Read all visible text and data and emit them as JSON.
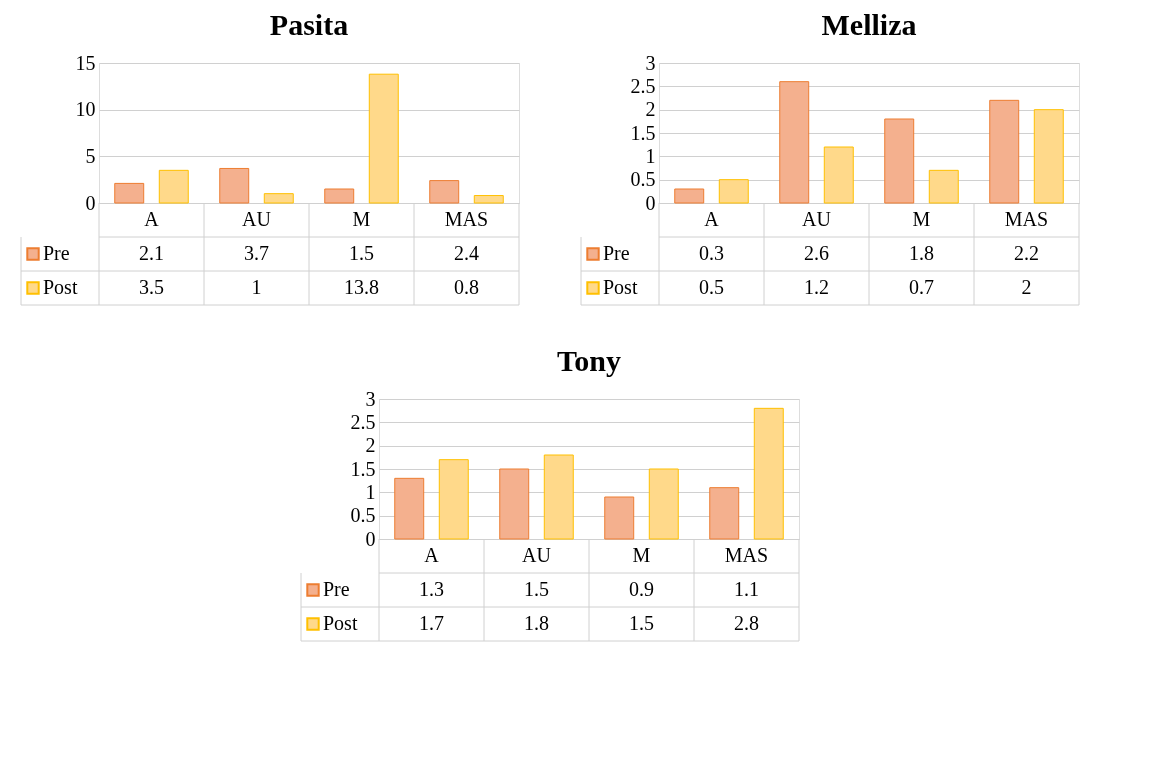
{
  "chart_data": [
    {
      "type": "bar",
      "title": "Pasita",
      "categories": [
        "A",
        "AU",
        "M",
        "MAS"
      ],
      "series": [
        {
          "name": "Pre",
          "color": "#f4b08e",
          "values": [
            2.1,
            3.7,
            1.5,
            2.4
          ]
        },
        {
          "name": "Post",
          "color": "#ffd98a",
          "values": [
            3.5,
            1,
            13.8,
            0.8
          ]
        }
      ],
      "ylim": [
        0,
        15
      ],
      "yticks": [
        0,
        5,
        10,
        15
      ],
      "grid": "y",
      "data_labels": true,
      "legend": "bottom left"
    },
    {
      "type": "bar",
      "title": "Melliza",
      "categories": [
        "A",
        "AU",
        "M",
        "MAS"
      ],
      "series": [
        {
          "name": "Pre",
          "color": "#f4b08e",
          "values": [
            0.3,
            2.6,
            1.8,
            2.2
          ]
        },
        {
          "name": "Post",
          "color": "#ffd98a",
          "values": [
            0.5,
            1.2,
            0.7,
            2
          ]
        }
      ],
      "ylim": [
        0,
        3
      ],
      "yticks": [
        0,
        0.5,
        1,
        1.5,
        2,
        2.5,
        3
      ],
      "grid": "y",
      "data_labels": true,
      "legend": "bottom left"
    },
    {
      "type": "bar",
      "title": "Tony",
      "categories": [
        "A",
        "AU",
        "M",
        "MAS"
      ],
      "series": [
        {
          "name": "Pre",
          "color": "#f4b08e",
          "values": [
            1.3,
            1.5,
            0.9,
            1.1
          ]
        },
        {
          "name": "Post",
          "color": "#ffd98a",
          "values": [
            1.7,
            1.8,
            1.5,
            2.8
          ]
        }
      ],
      "ylim": [
        0,
        3
      ],
      "yticks": [
        0,
        0.5,
        1,
        1.5,
        2,
        2.5,
        3
      ],
      "grid": "y",
      "data_labels": true,
      "legend": "bottom left"
    }
  ]
}
